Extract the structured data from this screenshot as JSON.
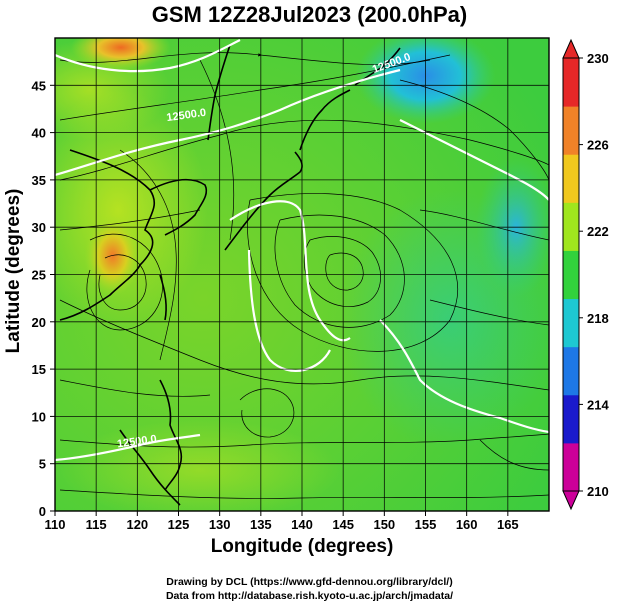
{
  "title": "GSM 12Z28Jul2023 (200.0hPa)",
  "credits": {
    "line1": "Drawing by DCL (https://www.gfd-dennou.org/library/dcl/)",
    "line2": "Data from http://database.rish.kyoto-u.ac.jp/arch/jmadata/"
  },
  "chart_data": {
    "type": "heatmap",
    "xlabel": "Longitude (degrees)",
    "ylabel": "Latitude  (degrees)",
    "xlim": [
      110,
      170
    ],
    "ylim": [
      0,
      50
    ],
    "x_ticks": [
      110,
      115,
      120,
      125,
      130,
      135,
      140,
      145,
      150,
      155,
      160,
      165
    ],
    "y_ticks": [
      0,
      5,
      10,
      15,
      20,
      25,
      30,
      35,
      40,
      45
    ],
    "colorbar": {
      "min": 210,
      "max": 230,
      "ticks": [
        210,
        214,
        218,
        222,
        226,
        230
      ]
    },
    "contours": [
      {
        "label": "12500.0",
        "lon": 126,
        "lat": 41.5
      },
      {
        "label": "12500.0",
        "lon": 120,
        "lat": 7
      },
      {
        "label": "12500.0",
        "lon": 151,
        "lat": 47
      }
    ],
    "features": [
      {
        "kind": "warm-max",
        "lon": 117,
        "lat": 27,
        "value": 226
      },
      {
        "kind": "warm-max",
        "lon": 118,
        "lat": 49,
        "value": 228
      },
      {
        "kind": "cold-min",
        "lon": 155,
        "lat": 46,
        "value": 216
      },
      {
        "kind": "cold-min",
        "lon": 166,
        "lat": 30,
        "value": 218
      },
      {
        "kind": "anticyclone-center",
        "lon": 146,
        "lat": 30
      },
      {
        "kind": "cyclone-center",
        "lon": 136,
        "lat": 12
      }
    ]
  },
  "colors": {
    "colormap": [
      "#cc0099",
      "#1a1acc",
      "#1e78e6",
      "#1ec8d2",
      "#32d23c",
      "#a0e61e",
      "#f0c81e",
      "#f08228",
      "#e62828"
    ],
    "contour": "#ffffff",
    "streamline": "#000000"
  }
}
